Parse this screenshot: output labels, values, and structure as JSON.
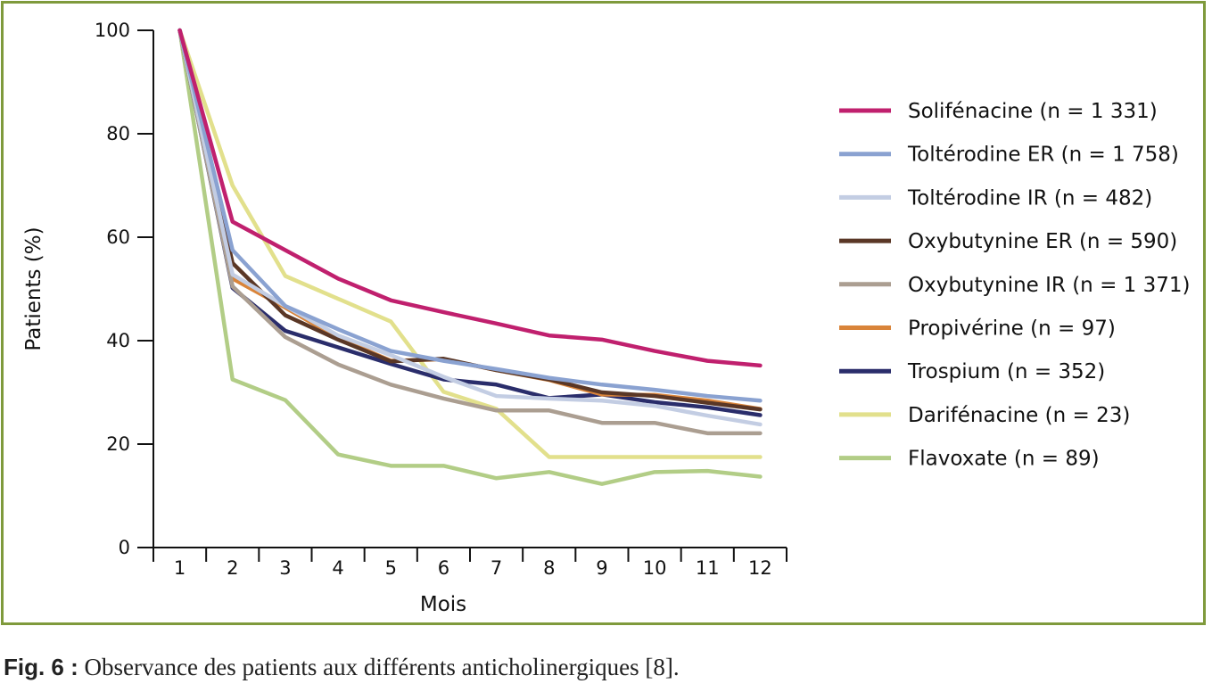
{
  "caption": {
    "prefix": "Fig. 6 :",
    "text": "Observance des patients aux différents anticholinergiques [8]."
  },
  "chart_data": {
    "type": "line",
    "xlabel": "Mois",
    "ylabel": "Patients (%)",
    "x": [
      1,
      2,
      3,
      4,
      5,
      6,
      7,
      8,
      9,
      10,
      11,
      12
    ],
    "xlim": [
      0.5,
      12.5
    ],
    "ylim": [
      0,
      100
    ],
    "yticks": [
      0,
      20,
      40,
      60,
      80,
      100
    ],
    "grid": false,
    "legend_position": "right",
    "series": [
      {
        "name": "Solifénacine (n = 1 331)",
        "color": "#c0206e",
        "values": [
          100,
          63,
          57.5,
          52,
          47.8,
          45.5,
          43.3,
          41,
          40.2,
          38,
          36.1,
          35.2
        ]
      },
      {
        "name": "Toltérodine ER (n = 1 758)",
        "color": "#8aa2d1",
        "values": [
          100,
          57.5,
          46.7,
          42.2,
          38,
          36.1,
          34.5,
          32.8,
          31.5,
          30.5,
          29.3,
          28.4
        ]
      },
      {
        "name": "Toltérodine IR (n = 482)",
        "color": "#c3cde3",
        "values": [
          100,
          52.8,
          46.7,
          41,
          37.2,
          33,
          29.3,
          28.8,
          28.4,
          27.4,
          25.5,
          23.8
        ]
      },
      {
        "name": "Oxybutynine ER (n = 590)",
        "color": "#5a3726",
        "values": [
          100,
          55,
          44.9,
          40.2,
          36,
          36.5,
          34.3,
          32.5,
          30,
          29.3,
          28,
          26.7
        ]
      },
      {
        "name": "Oxybutynine IR (n = 1 371)",
        "color": "#ab9e91",
        "values": [
          100,
          50.5,
          40.7,
          35.4,
          31.5,
          28.8,
          26.5,
          26.5,
          24.1,
          24.1,
          22.1,
          22.1
        ]
      },
      {
        "name": "Propivérine (n = 97)",
        "color": "#d9843a",
        "values": [
          100,
          52,
          46.4,
          40.5,
          36.1,
          36.4,
          34.3,
          32.4,
          29.6,
          29.5,
          28.4,
          26.8
        ]
      },
      {
        "name": "Trospium (n = 352)",
        "color": "#2a2d6b",
        "values": [
          100,
          50.2,
          41.9,
          38.7,
          35.5,
          32.5,
          31.5,
          28.9,
          29.6,
          28.1,
          27.1,
          25.6
        ]
      },
      {
        "name": "Darifénacine (n = 23)",
        "color": "#e2e08c",
        "values": [
          100,
          70,
          52.5,
          48.1,
          43.7,
          30.1,
          26.8,
          17.5,
          17.5,
          17.5,
          17.5,
          17.5
        ]
      },
      {
        "name": "Flavoxate (n = 89)",
        "color": "#b2cd86",
        "values": [
          100,
          32.5,
          28.5,
          18,
          15.8,
          15.8,
          13.4,
          14.6,
          12.3,
          14.6,
          14.8,
          13.7
        ]
      }
    ]
  }
}
